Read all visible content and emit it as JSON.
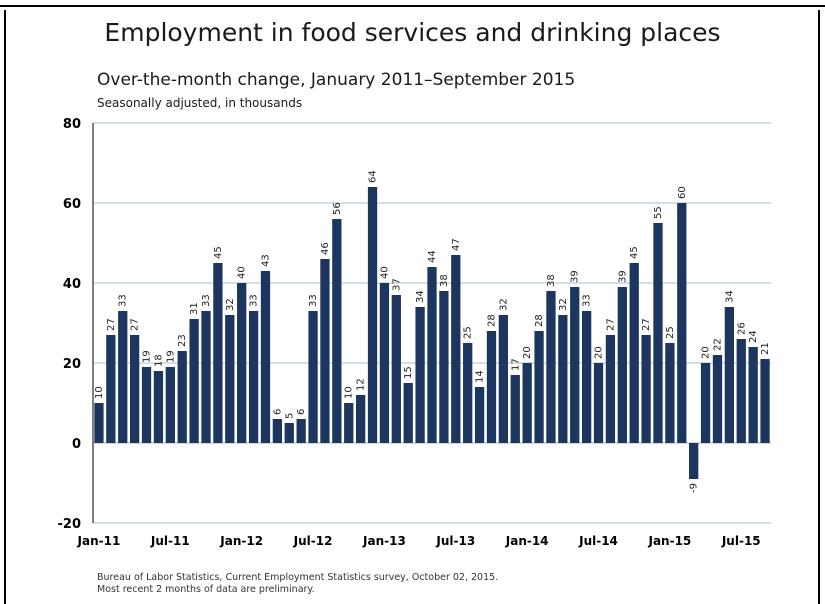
{
  "chart_data": {
    "type": "bar",
    "title": "Employment in food services and drinking places",
    "subtitle": "Over-the-month change, January 2011–September 2015",
    "units": "Seasonally adjusted, in thousands",
    "xlabel": "",
    "ylabel": "",
    "ylim": [
      -20,
      80
    ],
    "yticks": [
      -20,
      0,
      20,
      40,
      60,
      80
    ],
    "grid": true,
    "legend": "none",
    "bar_color": "#1c365f",
    "xtick_labels": [
      "Jan-11",
      "Jul-11",
      "Jan-12",
      "Jul-12",
      "Jan-13",
      "Jul-13",
      "Jan-14",
      "Jul-14",
      "Jan-15",
      "Jul-15"
    ],
    "xtick_every": 6,
    "categories": [
      "Jan-11",
      "Feb-11",
      "Mar-11",
      "Apr-11",
      "May-11",
      "Jun-11",
      "Jul-11",
      "Aug-11",
      "Sep-11",
      "Oct-11",
      "Nov-11",
      "Dec-11",
      "Jan-12",
      "Feb-12",
      "Mar-12",
      "Apr-12",
      "May-12",
      "Jun-12",
      "Jul-12",
      "Aug-12",
      "Sep-12",
      "Oct-12",
      "Nov-12",
      "Dec-12",
      "Jan-13",
      "Feb-13",
      "Mar-13",
      "Apr-13",
      "May-13",
      "Jun-13",
      "Jul-13",
      "Aug-13",
      "Sep-13",
      "Oct-13",
      "Nov-13",
      "Dec-13",
      "Jan-14",
      "Feb-14",
      "Mar-14",
      "Apr-14",
      "May-14",
      "Jun-14",
      "Jul-14",
      "Aug-14",
      "Sep-14",
      "Oct-14",
      "Nov-14",
      "Dec-14",
      "Jan-15",
      "Feb-15",
      "Mar-15",
      "Apr-15",
      "May-15",
      "Jun-15",
      "Jul-15",
      "Aug-15",
      "Sep-15"
    ],
    "values": [
      10,
      27,
      33,
      27,
      19,
      18,
      19,
      23,
      31,
      33,
      45,
      32,
      40,
      33,
      43,
      6,
      5,
      6,
      33,
      46,
      56,
      10,
      12,
      64,
      40,
      37,
      15,
      34,
      44,
      38,
      47,
      25,
      14,
      28,
      32,
      17,
      20,
      28,
      38,
      32,
      39,
      33,
      20,
      27,
      39,
      45,
      27,
      55,
      25,
      60,
      -9,
      20,
      22,
      34,
      26,
      24,
      21
    ]
  },
  "source": {
    "line1": "Bureau of Labor Statistics, Current Employment Statistics survey, October 02, 2015.",
    "line2": "Most recent 2 months of data are preliminary."
  }
}
